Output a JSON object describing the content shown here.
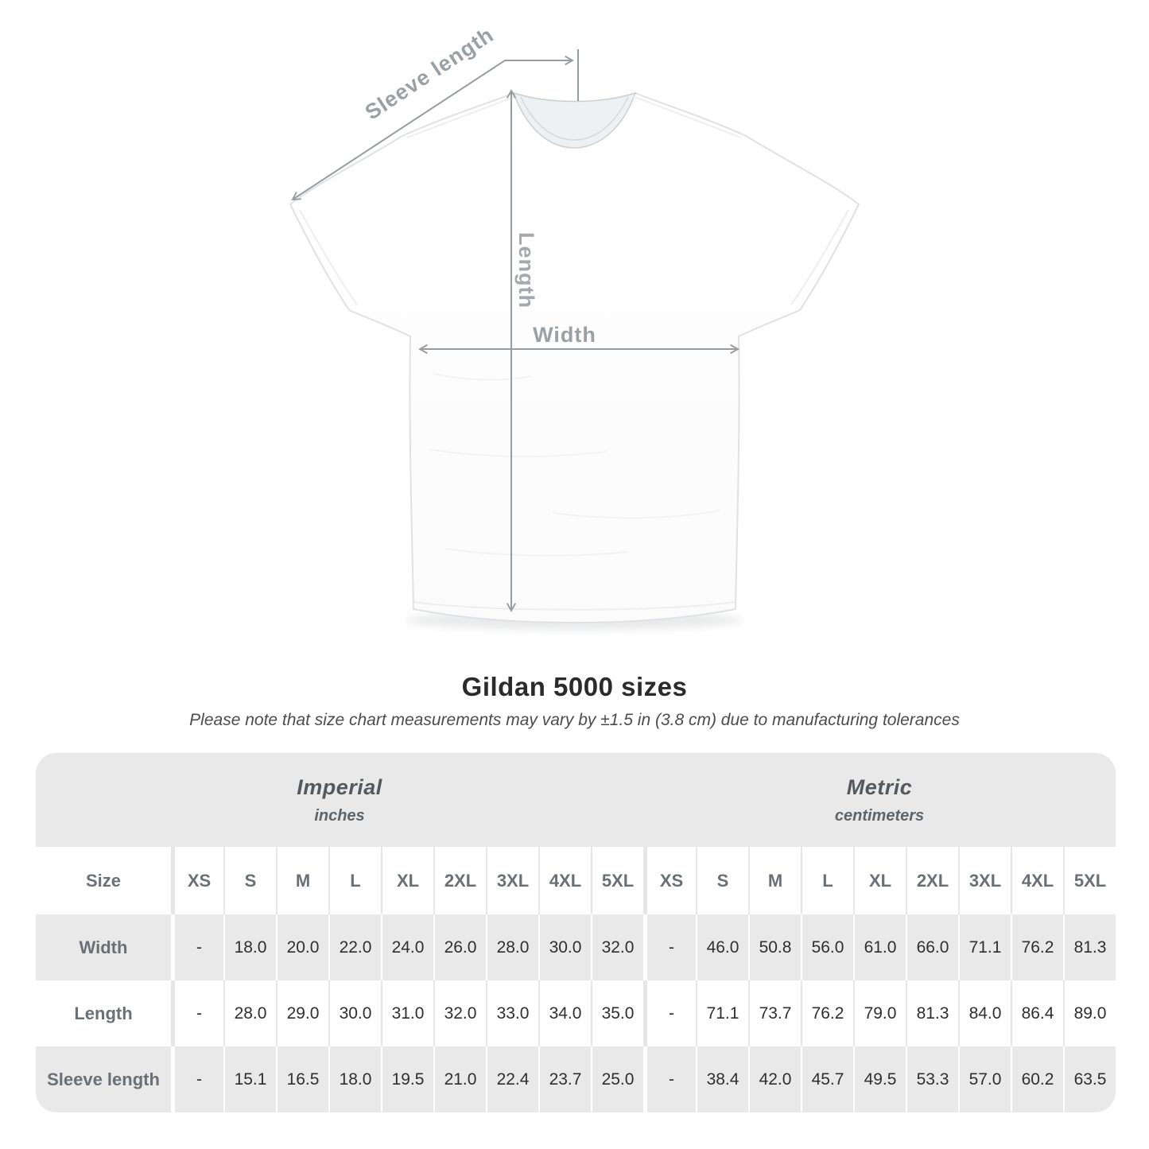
{
  "figure": {
    "labels": {
      "sleeve_length": "Sleeve length",
      "length": "Length",
      "width": "Width"
    }
  },
  "title": "Gildan 5000 sizes",
  "subtitle": "Please note that size chart measurements may vary by ±1.5 in (3.8 cm) due to manufacturing tolerances",
  "table": {
    "sections": [
      {
        "label": "Imperial",
        "sublabel": "inches"
      },
      {
        "label": "Metric",
        "sublabel": "centimeters"
      }
    ],
    "size_header": "Size",
    "sizes": [
      "XS",
      "S",
      "M",
      "L",
      "XL",
      "2XL",
      "3XL",
      "4XL",
      "5XL"
    ],
    "rows": [
      {
        "label": "Width",
        "imperial": [
          "-",
          "18.0",
          "20.0",
          "22.0",
          "24.0",
          "26.0",
          "28.0",
          "30.0",
          "32.0"
        ],
        "metric": [
          "-",
          "46.0",
          "50.8",
          "56.0",
          "61.0",
          "66.0",
          "71.1",
          "76.2",
          "81.3"
        ]
      },
      {
        "label": "Length",
        "imperial": [
          "-",
          "28.0",
          "29.0",
          "30.0",
          "31.0",
          "32.0",
          "33.0",
          "34.0",
          "35.0"
        ],
        "metric": [
          "-",
          "71.1",
          "73.7",
          "76.2",
          "79.0",
          "81.3",
          "84.0",
          "86.4",
          "89.0"
        ]
      },
      {
        "label": "Sleeve length",
        "imperial": [
          "-",
          "15.1",
          "16.5",
          "18.0",
          "19.5",
          "21.0",
          "22.4",
          "23.7",
          "25.0"
        ],
        "metric": [
          "-",
          "38.4",
          "42.0",
          "45.7",
          "49.5",
          "53.3",
          "57.0",
          "60.2",
          "63.5"
        ]
      }
    ]
  },
  "colors": {
    "stripe_gray": "#e9e9e9",
    "arrow_gray": "#979ca0",
    "figure_label_gray": "#9aa0a4",
    "title_text": "#2b2b2b"
  }
}
